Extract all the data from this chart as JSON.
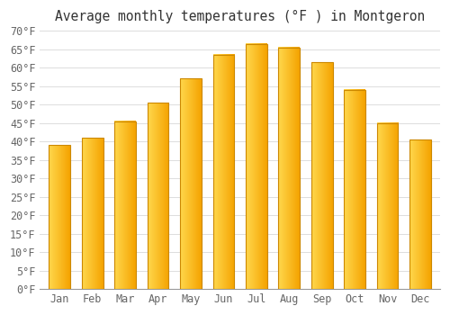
{
  "title": "Average monthly temperatures (°F ) in Montgeron",
  "months": [
    "Jan",
    "Feb",
    "Mar",
    "Apr",
    "May",
    "Jun",
    "Jul",
    "Aug",
    "Sep",
    "Oct",
    "Nov",
    "Dec"
  ],
  "values": [
    39,
    41,
    45.5,
    50.5,
    57,
    63.5,
    66.5,
    65.5,
    61.5,
    54,
    45,
    40.5
  ],
  "bar_color_left": "#FFD84D",
  "bar_color_right": "#F5A300",
  "bar_edge_color": "#CC8800",
  "background_color": "#FFFFFF",
  "plot_bg_color": "#F8F8FF",
  "grid_color": "#DDDDDD",
  "ylim": [
    0,
    70
  ],
  "ytick_step": 5,
  "title_fontsize": 10.5,
  "tick_fontsize": 8.5,
  "tick_color": "#666666",
  "title_color": "#333333"
}
